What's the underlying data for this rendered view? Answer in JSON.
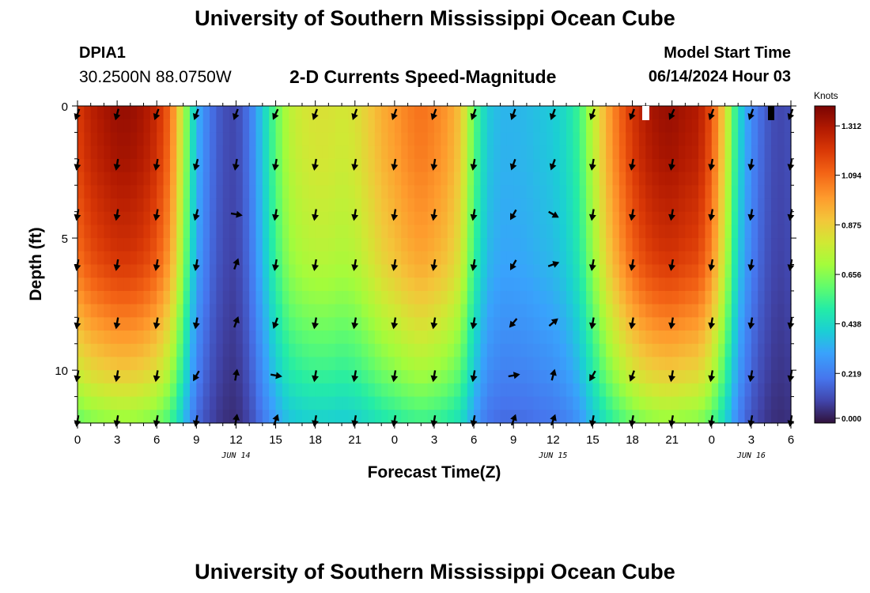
{
  "header": {
    "title": "University of Southern Mississippi Ocean Cube",
    "station_id": "DPIA1",
    "station_coords": "30.2500N  88.0750W",
    "product": "2-D Currents Speed-Magnitude",
    "model_start_label": "Model Start Time",
    "model_start_value": "06/14/2024 Hour 03"
  },
  "footer": {
    "title": "University of Southern Mississippi Ocean Cube"
  },
  "chart_data": {
    "type": "heatmap",
    "title": "2-D Currents Speed-Magnitude",
    "xlabel": "Forecast Time(Z)",
    "ylabel": "Depth (ft)",
    "x_range_hours": [
      0,
      54
    ],
    "y_range_ft": [
      0,
      12
    ],
    "x_ticks": [
      "0",
      "3",
      "6",
      "9",
      "12",
      "15",
      "18",
      "21",
      "0",
      "3",
      "6",
      "9",
      "12",
      "15",
      "18",
      "21",
      "0",
      "3",
      "6"
    ],
    "y_ticks": [
      "0",
      "5",
      "10"
    ],
    "y_tick_values": [
      0,
      5,
      10
    ],
    "date_labels": [
      {
        "hour": 12,
        "text": "JUN 14"
      },
      {
        "hour": 36,
        "text": "JUN 15"
      },
      {
        "hour": 51,
        "text": "JUN 16"
      }
    ],
    "colorbar": {
      "unit": "Knots",
      "ticks": [
        "1.312",
        "1.094",
        "0.875",
        "0.656",
        "0.438",
        "0.219",
        "0.000"
      ],
      "min": 0.0,
      "max": 1.4
    },
    "speed_profile_hours": [
      0,
      1,
      2,
      3,
      4,
      5,
      6,
      7,
      8,
      9,
      10,
      11,
      12,
      13,
      14,
      15,
      16,
      17,
      18,
      19,
      20,
      21,
      22,
      23,
      24,
      25,
      26,
      27,
      28,
      29,
      30,
      31,
      32,
      33,
      34,
      35,
      36,
      37,
      38,
      39,
      40,
      41,
      42,
      43,
      44,
      45,
      46,
      47,
      48,
      49,
      50,
      51,
      52,
      53,
      54
    ],
    "speed_profile_surface": [
      1.2,
      1.28,
      1.32,
      1.35,
      1.35,
      1.32,
      1.25,
      1.1,
      0.75,
      0.35,
      0.2,
      0.12,
      0.1,
      0.2,
      0.4,
      0.6,
      0.75,
      0.8,
      0.82,
      0.82,
      0.8,
      0.82,
      0.88,
      0.95,
      1.0,
      1.05,
      1.08,
      1.05,
      1.0,
      0.9,
      0.6,
      0.4,
      0.35,
      0.35,
      0.36,
      0.38,
      0.4,
      0.45,
      0.55,
      0.75,
      0.95,
      1.1,
      1.22,
      1.3,
      1.34,
      1.35,
      1.32,
      1.3,
      1.15,
      0.85,
      0.45,
      0.25,
      0.15,
      0.1,
      0.12
    ],
    "depth_factor_ft": [
      0,
      1,
      2,
      3,
      4,
      5,
      6,
      7,
      8,
      9,
      10,
      11,
      12
    ],
    "depth_factor": [
      1.0,
      0.99,
      0.98,
      0.96,
      0.94,
      0.92,
      0.89,
      0.84,
      0.78,
      0.72,
      0.66,
      0.58,
      0.5
    ],
    "vector_hours": [
      0,
      3,
      6,
      9,
      12,
      15,
      18,
      21,
      24,
      27,
      30,
      33,
      36,
      39,
      42,
      45,
      48,
      51,
      54
    ],
    "vector_depths_ft": [
      0.3,
      2.2,
      4.1,
      6.0,
      8.2,
      10.2,
      11.9
    ],
    "vector_angles_deg": [
      [
        110,
        105,
        110,
        110,
        110,
        115,
        110,
        110,
        110,
        110,
        110,
        110,
        110,
        110,
        110,
        115,
        110,
        110,
        110
      ],
      [
        100,
        100,
        100,
        105,
        100,
        100,
        100,
        100,
        100,
        100,
        100,
        110,
        110,
        100,
        100,
        100,
        100,
        100,
        100
      ],
      [
        100,
        100,
        100,
        105,
        10,
        100,
        100,
        100,
        100,
        100,
        100,
        120,
        30,
        100,
        100,
        100,
        100,
        100,
        100
      ],
      [
        100,
        100,
        100,
        100,
        -70,
        100,
        100,
        100,
        100,
        100,
        100,
        120,
        -20,
        100,
        100,
        100,
        100,
        100,
        100
      ],
      [
        100,
        100,
        100,
        100,
        -70,
        110,
        100,
        100,
        100,
        100,
        100,
        130,
        -40,
        100,
        100,
        100,
        100,
        100,
        100
      ],
      [
        100,
        100,
        100,
        120,
        -80,
        10,
        100,
        100,
        100,
        100,
        100,
        -10,
        -75,
        120,
        110,
        100,
        100,
        100,
        100
      ],
      [
        100,
        100,
        100,
        100,
        -80,
        -70,
        100,
        100,
        100,
        100,
        100,
        -70,
        -70,
        100,
        100,
        100,
        100,
        100,
        100
      ]
    ]
  }
}
